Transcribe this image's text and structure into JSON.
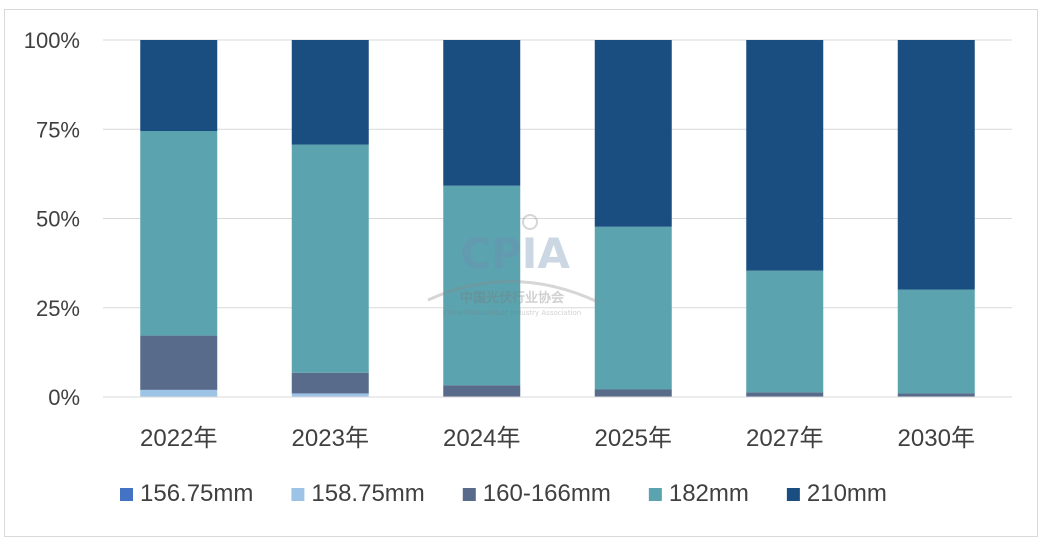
{
  "chart_data": {
    "type": "bar",
    "stacked": true,
    "percent": true,
    "categories": [
      "2022年",
      "2023年",
      "2024年",
      "2025年",
      "2027年",
      "2030年"
    ],
    "series": [
      {
        "name": "156.75mm",
        "color": "#4472c4",
        "values": [
          0,
          0,
          0,
          0,
          0,
          0
        ]
      },
      {
        "name": "158.75mm",
        "color": "#9dc3e6",
        "values": [
          2,
          1,
          0,
          0,
          0,
          0
        ]
      },
      {
        "name": "160-166mm",
        "color": "#586b8a",
        "values": [
          15.2,
          5.8,
          3.3,
          2.1,
          1.3,
          1.0
        ]
      },
      {
        "name": "182mm",
        "color": "#5ba3ae",
        "values": [
          57.3,
          63.9,
          55.9,
          45.6,
          34.1,
          29.1
        ]
      },
      {
        "name": "210mm",
        "color": "#1a4d80",
        "values": [
          25.5,
          29.3,
          40.8,
          52.3,
          64.6,
          69.9
        ]
      }
    ],
    "yticks": [
      "0%",
      "25%",
      "50%",
      "75%",
      "100%"
    ],
    "ylim": [
      0,
      100
    ],
    "grid": true,
    "legend": "bottom"
  },
  "watermark": {
    "logo_text": "CPIA",
    "name_cn": "中国光伏行业协会",
    "name_en": "China Photovoltaic Industry Association"
  }
}
